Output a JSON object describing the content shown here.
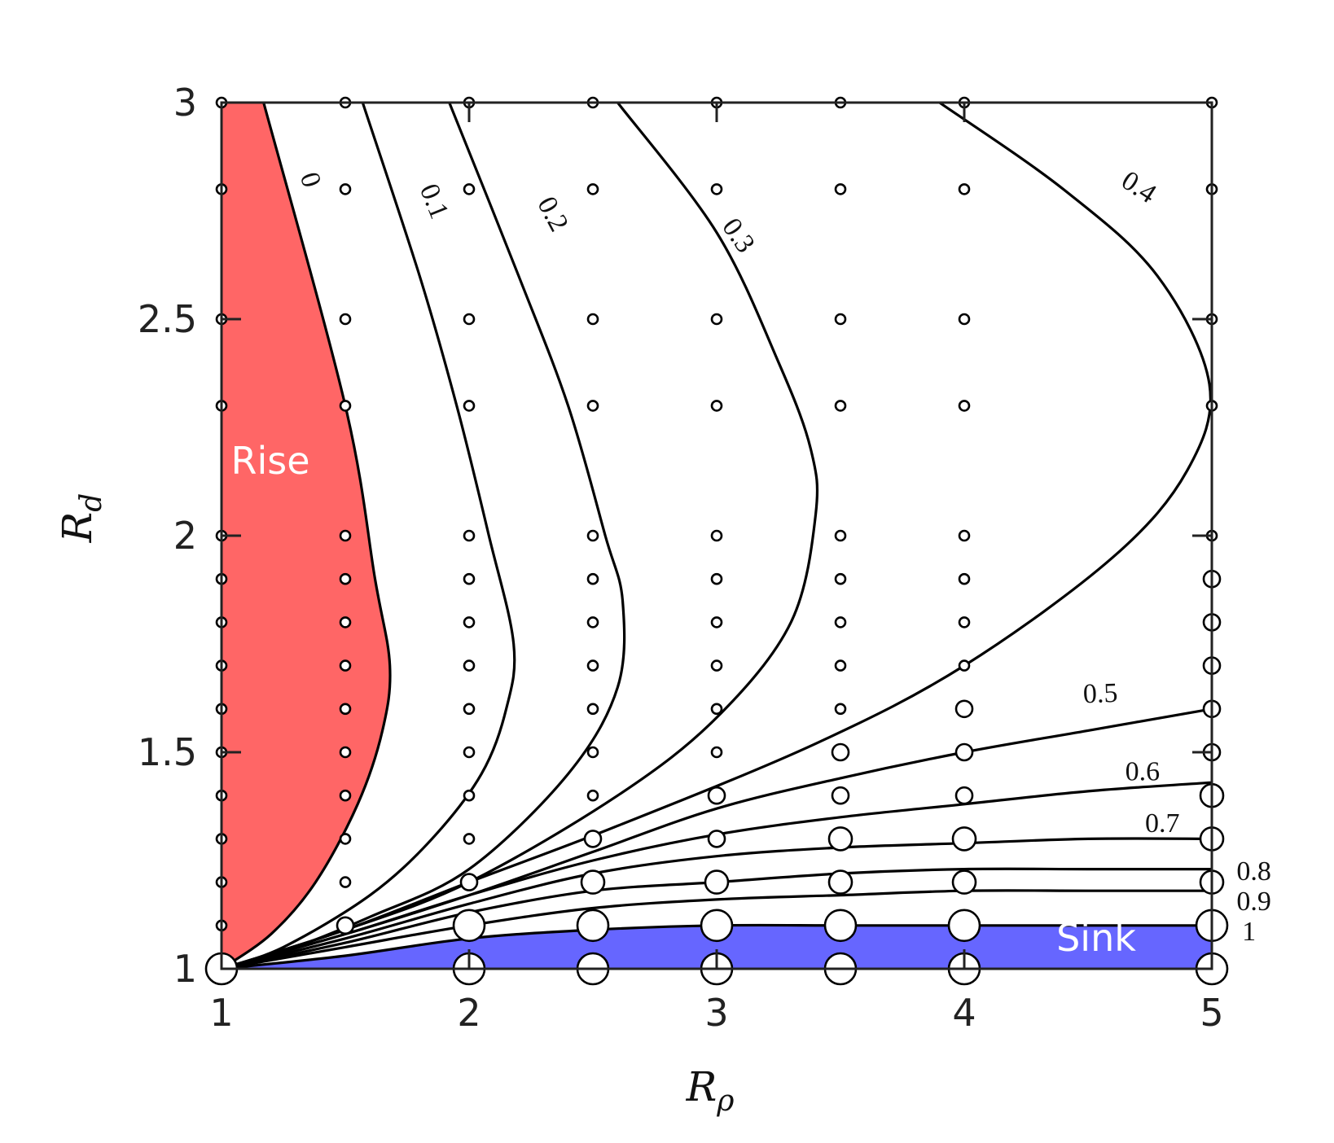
{
  "chart_data": {
    "type": "contour",
    "x_axis": {
      "label": "R",
      "label_subscript": "ρ",
      "range": [
        1,
        5
      ],
      "ticks": [
        "1",
        "2",
        "3",
        "4",
        "5"
      ],
      "tick_values": [
        1,
        2,
        3,
        4,
        5
      ]
    },
    "y_axis": {
      "label": "R",
      "label_subscript": "d",
      "range": [
        1,
        3
      ],
      "ticks": [
        "1",
        "1.5",
        "2",
        "2.5",
        "3"
      ],
      "tick_values": [
        1,
        1.5,
        2,
        2.5,
        3
      ]
    },
    "grid": false,
    "regions": [
      {
        "name": "Rise",
        "label": "Rise",
        "color": "#ff6666"
      },
      {
        "name": "Sink",
        "label": "Sink",
        "color": "#6666ff"
      }
    ],
    "contours": [
      {
        "level": "0",
        "points": [
          [
            1.17,
            3.0
          ],
          [
            1.5,
            2.3
          ],
          [
            1.62,
            1.9
          ],
          [
            1.68,
            1.7
          ],
          [
            1.65,
            1.55
          ],
          [
            1.55,
            1.38
          ],
          [
            1.38,
            1.2
          ],
          [
            1.2,
            1.08
          ],
          [
            1.0,
            1.0
          ]
        ]
      },
      {
        "level": "0.1",
        "points": [
          [
            1.57,
            3.0
          ],
          [
            1.8,
            2.6
          ],
          [
            1.95,
            2.3
          ],
          [
            2.08,
            2.0
          ],
          [
            2.18,
            1.75
          ],
          [
            2.15,
            1.6
          ],
          [
            2.05,
            1.45
          ],
          [
            1.85,
            1.3
          ],
          [
            1.6,
            1.17
          ],
          [
            1.25,
            1.05
          ],
          [
            1.0,
            1.0
          ]
        ]
      },
      {
        "level": "0.2",
        "points": [
          [
            1.92,
            3.0
          ],
          [
            2.2,
            2.6
          ],
          [
            2.4,
            2.3
          ],
          [
            2.55,
            2.0
          ],
          [
            2.62,
            1.85
          ],
          [
            2.6,
            1.65
          ],
          [
            2.4,
            1.45
          ],
          [
            2.0,
            1.23
          ],
          [
            1.6,
            1.12
          ],
          [
            1.25,
            1.04
          ],
          [
            1.0,
            1.0
          ]
        ]
      },
      {
        "level": "0.3",
        "points": [
          [
            2.6,
            3.0
          ],
          [
            3.0,
            2.7
          ],
          [
            3.25,
            2.4
          ],
          [
            3.38,
            2.2
          ],
          [
            3.4,
            2.05
          ],
          [
            3.3,
            1.8
          ],
          [
            3.0,
            1.58
          ],
          [
            2.6,
            1.4
          ],
          [
            2.0,
            1.2
          ],
          [
            1.5,
            1.09
          ],
          [
            1.0,
            1.0
          ]
        ]
      },
      {
        "level": "0.4",
        "points": [
          [
            3.9,
            3.0
          ],
          [
            4.4,
            2.8
          ],
          [
            4.78,
            2.6
          ],
          [
            4.99,
            2.35
          ],
          [
            4.9,
            2.15
          ],
          [
            4.6,
            1.95
          ],
          [
            4.0,
            1.7
          ],
          [
            3.4,
            1.52
          ],
          [
            2.6,
            1.33
          ],
          [
            2.0,
            1.2
          ],
          [
            1.5,
            1.09
          ],
          [
            1.0,
            1.0
          ]
        ]
      },
      {
        "level": "0.5",
        "points": [
          [
            5.0,
            1.6
          ],
          [
            4.5,
            1.55
          ],
          [
            4.0,
            1.5
          ],
          [
            3.5,
            1.44
          ],
          [
            3.0,
            1.37
          ],
          [
            2.5,
            1.27
          ],
          [
            2.0,
            1.17
          ],
          [
            1.5,
            1.08
          ],
          [
            1.0,
            1.0
          ]
        ]
      },
      {
        "level": "0.6",
        "points": [
          [
            5.0,
            1.43
          ],
          [
            4.5,
            1.41
          ],
          [
            4.0,
            1.38
          ],
          [
            3.5,
            1.35
          ],
          [
            3.0,
            1.31
          ],
          [
            2.5,
            1.25
          ],
          [
            2.0,
            1.17
          ],
          [
            1.5,
            1.08
          ],
          [
            1.0,
            1.0
          ]
        ]
      },
      {
        "level": "0.7",
        "points": [
          [
            5.0,
            1.3
          ],
          [
            4.5,
            1.3
          ],
          [
            4.0,
            1.29
          ],
          [
            3.5,
            1.28
          ],
          [
            3.0,
            1.26
          ],
          [
            2.5,
            1.22
          ],
          [
            2.0,
            1.15
          ],
          [
            1.5,
            1.07
          ],
          [
            1.0,
            1.0
          ]
        ]
      },
      {
        "level": "0.8",
        "points": [
          [
            5.0,
            1.23
          ],
          [
            4.5,
            1.23
          ],
          [
            4.0,
            1.23
          ],
          [
            3.5,
            1.22
          ],
          [
            3.0,
            1.2
          ],
          [
            2.5,
            1.18
          ],
          [
            2.0,
            1.13
          ],
          [
            1.5,
            1.06
          ],
          [
            1.0,
            1.0
          ]
        ]
      },
      {
        "level": "0.9",
        "points": [
          [
            5.0,
            1.18
          ],
          [
            4.5,
            1.18
          ],
          [
            4.0,
            1.18
          ],
          [
            3.5,
            1.17
          ],
          [
            3.0,
            1.16
          ],
          [
            2.5,
            1.14
          ],
          [
            2.0,
            1.1
          ],
          [
            1.5,
            1.05
          ],
          [
            1.0,
            1.0
          ]
        ]
      },
      {
        "level": "1",
        "points": [
          [
            5.0,
            1.1
          ],
          [
            4.5,
            1.1
          ],
          [
            4.0,
            1.1
          ],
          [
            3.5,
            1.1
          ],
          [
            3.0,
            1.1
          ],
          [
            2.5,
            1.09
          ],
          [
            2.0,
            1.07
          ],
          [
            1.5,
            1.03
          ],
          [
            1.0,
            1.0
          ]
        ]
      }
    ],
    "contour_labels": [
      {
        "text": "0",
        "x": 1.35,
        "y": 2.82,
        "rotate": 72
      },
      {
        "text": "0.1",
        "x": 1.85,
        "y": 2.77,
        "rotate": 68
      },
      {
        "text": "0.2",
        "x": 2.33,
        "y": 2.74,
        "rotate": 62
      },
      {
        "text": "0.3",
        "x": 3.08,
        "y": 2.69,
        "rotate": 55
      },
      {
        "text": "0.4",
        "x": 4.7,
        "y": 2.8,
        "rotate": 33
      },
      {
        "text": "0.5",
        "x": 4.55,
        "y": 1.63,
        "rotate": -2
      },
      {
        "text": "0.6",
        "x": 4.72,
        "y": 1.45,
        "rotate": 0
      },
      {
        "text": "0.7",
        "x": 4.8,
        "y": 1.33,
        "rotate": 0
      },
      {
        "text": "0.8",
        "x": 5.17,
        "y": 1.22,
        "rotate": 0
      },
      {
        "text": "0.9",
        "x": 5.17,
        "y": 1.15,
        "rotate": 0
      },
      {
        "text": "1",
        "x": 5.15,
        "y": 1.08,
        "rotate": 0
      }
    ],
    "scatter": {
      "description_size": "marker radius grows with contour value",
      "points": [
        [
          1.0,
          3.0,
          1
        ],
        [
          1.0,
          2.8,
          1
        ],
        [
          1.0,
          2.5,
          1
        ],
        [
          1.0,
          2.3,
          1
        ],
        [
          1.0,
          2.0,
          1
        ],
        [
          1.0,
          1.9,
          1
        ],
        [
          1.0,
          1.8,
          1
        ],
        [
          1.0,
          1.7,
          1
        ],
        [
          1.0,
          1.6,
          1
        ],
        [
          1.0,
          1.5,
          1
        ],
        [
          1.0,
          1.4,
          1
        ],
        [
          1.0,
          1.3,
          1
        ],
        [
          1.0,
          1.2,
          1
        ],
        [
          1.0,
          1.1,
          1
        ],
        [
          1.0,
          1.0,
          4
        ],
        [
          1.5,
          3.0,
          1
        ],
        [
          1.5,
          2.8,
          1
        ],
        [
          1.5,
          2.5,
          1
        ],
        [
          1.5,
          2.3,
          1
        ],
        [
          1.5,
          2.0,
          1
        ],
        [
          1.5,
          1.9,
          1
        ],
        [
          1.5,
          1.8,
          1
        ],
        [
          1.5,
          1.7,
          1
        ],
        [
          1.5,
          1.6,
          1
        ],
        [
          1.5,
          1.5,
          1
        ],
        [
          1.5,
          1.4,
          1
        ],
        [
          1.5,
          1.3,
          1
        ],
        [
          1.5,
          1.2,
          1
        ],
        [
          1.5,
          1.1,
          2
        ],
        [
          2.0,
          3.0,
          1
        ],
        [
          2.0,
          2.8,
          1
        ],
        [
          2.0,
          2.5,
          1
        ],
        [
          2.0,
          2.3,
          1
        ],
        [
          2.0,
          2.0,
          1
        ],
        [
          2.0,
          1.9,
          1
        ],
        [
          2.0,
          1.8,
          1
        ],
        [
          2.0,
          1.7,
          1
        ],
        [
          2.0,
          1.6,
          1
        ],
        [
          2.0,
          1.5,
          1
        ],
        [
          2.0,
          1.4,
          1
        ],
        [
          2.0,
          1.3,
          1
        ],
        [
          2.0,
          1.2,
          2
        ],
        [
          2.0,
          1.1,
          4
        ],
        [
          2.0,
          1.0,
          4
        ],
        [
          2.5,
          3.0,
          1
        ],
        [
          2.5,
          2.8,
          1
        ],
        [
          2.5,
          2.5,
          1
        ],
        [
          2.5,
          2.3,
          1
        ],
        [
          2.5,
          2.0,
          1
        ],
        [
          2.5,
          1.9,
          1
        ],
        [
          2.5,
          1.8,
          1
        ],
        [
          2.5,
          1.7,
          1
        ],
        [
          2.5,
          1.6,
          1
        ],
        [
          2.5,
          1.5,
          1
        ],
        [
          2.5,
          1.4,
          1
        ],
        [
          2.5,
          1.3,
          2
        ],
        [
          2.5,
          1.2,
          3
        ],
        [
          2.5,
          1.1,
          4
        ],
        [
          2.5,
          1.0,
          4
        ],
        [
          3.0,
          3.0,
          1
        ],
        [
          3.0,
          2.8,
          1
        ],
        [
          3.0,
          2.5,
          1
        ],
        [
          3.0,
          2.3,
          1
        ],
        [
          3.0,
          2.0,
          1
        ],
        [
          3.0,
          1.9,
          1
        ],
        [
          3.0,
          1.8,
          1
        ],
        [
          3.0,
          1.7,
          1
        ],
        [
          3.0,
          1.6,
          1
        ],
        [
          3.0,
          1.5,
          1
        ],
        [
          3.0,
          1.4,
          2
        ],
        [
          3.0,
          1.3,
          2
        ],
        [
          3.0,
          1.2,
          3
        ],
        [
          3.0,
          1.1,
          4
        ],
        [
          3.0,
          1.0,
          4
        ],
        [
          3.5,
          3.0,
          1
        ],
        [
          3.5,
          2.8,
          1
        ],
        [
          3.5,
          2.5,
          1
        ],
        [
          3.5,
          2.3,
          1
        ],
        [
          3.5,
          2.0,
          1
        ],
        [
          3.5,
          1.9,
          1
        ],
        [
          3.5,
          1.8,
          1
        ],
        [
          3.5,
          1.7,
          1
        ],
        [
          3.5,
          1.6,
          1
        ],
        [
          3.5,
          1.5,
          2
        ],
        [
          3.5,
          1.4,
          2
        ],
        [
          3.5,
          1.3,
          3
        ],
        [
          3.5,
          1.2,
          3
        ],
        [
          3.5,
          1.1,
          4
        ],
        [
          3.5,
          1.0,
          4
        ],
        [
          4.0,
          3.0,
          1
        ],
        [
          4.0,
          2.8,
          1
        ],
        [
          4.0,
          2.5,
          1
        ],
        [
          4.0,
          2.3,
          1
        ],
        [
          4.0,
          2.0,
          1
        ],
        [
          4.0,
          1.9,
          1
        ],
        [
          4.0,
          1.8,
          1
        ],
        [
          4.0,
          1.7,
          1
        ],
        [
          4.0,
          1.6,
          2
        ],
        [
          4.0,
          1.5,
          2
        ],
        [
          4.0,
          1.4,
          2
        ],
        [
          4.0,
          1.3,
          3
        ],
        [
          4.0,
          1.2,
          3
        ],
        [
          4.0,
          1.1,
          4
        ],
        [
          4.0,
          1.0,
          4
        ],
        [
          5.0,
          3.0,
          1
        ],
        [
          5.0,
          2.8,
          1
        ],
        [
          5.0,
          2.5,
          1
        ],
        [
          5.0,
          2.3,
          1
        ],
        [
          5.0,
          2.0,
          1
        ],
        [
          5.0,
          1.9,
          2
        ],
        [
          5.0,
          1.8,
          2
        ],
        [
          5.0,
          1.7,
          2
        ],
        [
          5.0,
          1.6,
          2
        ],
        [
          5.0,
          1.5,
          2
        ],
        [
          5.0,
          1.4,
          3
        ],
        [
          5.0,
          1.3,
          3
        ],
        [
          5.0,
          1.2,
          3
        ],
        [
          5.0,
          1.1,
          4
        ],
        [
          5.0,
          1.0,
          4
        ]
      ]
    }
  }
}
